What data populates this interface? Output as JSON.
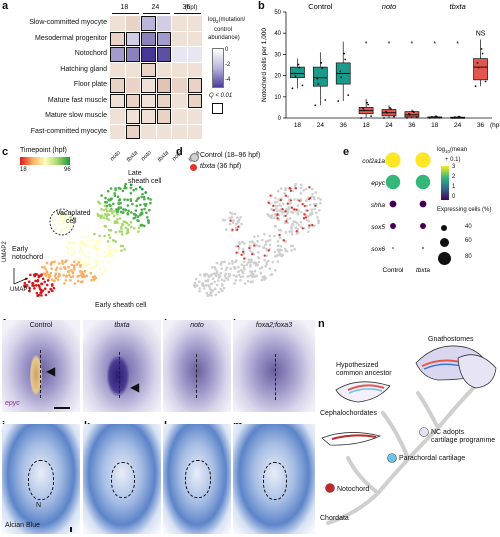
{
  "panels": {
    "a": "a",
    "b": "b",
    "c": "c",
    "d": "d",
    "e": "e",
    "f": "f",
    "g": "g",
    "h": "h",
    "i": "i",
    "j": "j",
    "k": "k",
    "l": "l",
    "m": "m",
    "n": "n"
  },
  "panel_a": {
    "timepoints": [
      "18",
      "24",
      "36"
    ],
    "unit": "(hpf)",
    "rows": [
      "Slow-committed myocyte",
      "Mesodermal progenitor",
      "Notochord",
      "Hatching gland",
      "Floor plate",
      "Mature fast muscle",
      "Mature slow muscle",
      "Fast-committed myocyte"
    ],
    "cols": [
      "noto",
      "tbxta",
      "noto",
      "tbxta",
      "noto",
      "tbxta"
    ],
    "legend_title_1": "log",
    "legend_title_sub": "2",
    "legend_title_2": "(mutation/",
    "legend_title_3": "control",
    "legend_title_4": "abundance)",
    "legend_ticks": [
      "0",
      "-2",
      "-4"
    ],
    "q_label": "Q < 0.01"
  },
  "chart_data": [
    {
      "type": "heatmap",
      "rows": [
        "Slow-committed myocyte",
        "Mesodermal progenitor",
        "Notochord",
        "Hatching gland",
        "Floor plate",
        "Mature fast muscle",
        "Mature slow muscle",
        "Fast-committed myocyte"
      ],
      "columns": [
        "18 noto",
        "18 tbxta",
        "24 noto",
        "24 tbxta",
        "36 noto",
        "36 tbxta"
      ],
      "values": [
        [
          0,
          0.5,
          -1.5,
          -1.0,
          0,
          0
        ],
        [
          0.5,
          -1.0,
          -2.5,
          -2.0,
          0,
          0
        ],
        [
          -2.0,
          -2.5,
          -4.0,
          -3.5,
          -0.5,
          -0.5
        ],
        [
          0,
          0,
          0.5,
          0,
          0,
          0
        ],
        [
          0.5,
          0.5,
          0,
          1.0,
          0.5,
          0.5
        ],
        [
          0,
          0.5,
          0,
          0.5,
          0,
          0.5
        ],
        [
          0,
          0,
          0,
          0.5,
          0,
          0
        ],
        [
          0,
          0.5,
          0,
          0,
          0,
          0
        ]
      ],
      "significant": [
        [
          false,
          false,
          true,
          false,
          false,
          false
        ],
        [
          true,
          true,
          true,
          true,
          false,
          false
        ],
        [
          true,
          true,
          true,
          true,
          false,
          false
        ],
        [
          false,
          false,
          true,
          false,
          false,
          false
        ],
        [
          true,
          false,
          true,
          true,
          false,
          true
        ],
        [
          true,
          true,
          true,
          true,
          false,
          true
        ],
        [
          false,
          true,
          true,
          true,
          false,
          false
        ],
        [
          false,
          true,
          false,
          false,
          false,
          false
        ]
      ],
      "colorbar_ticks": [
        0,
        -2,
        -4
      ]
    },
    {
      "type": "box",
      "ylabel": "Notochord cells per 1,000",
      "ylim": [
        0,
        50
      ],
      "yticks": [
        0,
        10,
        20,
        30,
        40,
        50
      ],
      "xunit": "(hpf)",
      "groups": [
        {
          "name": "Control",
          "color": "#1a9a8a",
          "timepoints": [
            "18",
            "24",
            "36"
          ],
          "boxes": [
            {
              "q1": 19,
              "median": 21,
              "q3": 24,
              "min": 14,
              "max": 28
            },
            {
              "q1": 15,
              "median": 19,
              "q3": 24,
              "min": 6,
              "max": 31
            },
            {
              "q1": 16,
              "median": 21,
              "q3": 26,
              "min": 8,
              "max": 36
            }
          ]
        },
        {
          "name": "noto",
          "color": "#e4574f",
          "timepoints": [
            "18",
            "24",
            "36"
          ],
          "boxes": [
            {
              "q1": 2,
              "median": 3.5,
              "q3": 5,
              "min": 0,
              "max": 9
            },
            {
              "q1": 1,
              "median": 2.5,
              "q3": 4,
              "min": 0,
              "max": 6
            },
            {
              "q1": 0.5,
              "median": 1.5,
              "q3": 3,
              "min": 0,
              "max": 4
            }
          ],
          "significance": [
            "*",
            "*",
            "*"
          ]
        },
        {
          "name": "tbxta",
          "color": "#e4574f",
          "timepoints": [
            "18",
            "24",
            "36"
          ],
          "boxes": [
            {
              "q1": 0,
              "median": 0.3,
              "q3": 0.5,
              "min": 0,
              "max": 1
            },
            {
              "q1": 0,
              "median": 0.2,
              "q3": 0.4,
              "min": 0,
              "max": 0.8
            },
            {
              "q1": 18,
              "median": 24,
              "q3": 28,
              "min": 15,
              "max": 37
            }
          ],
          "significance": [
            "*",
            "*",
            "NS"
          ]
        }
      ]
    },
    {
      "type": "dotplot",
      "genes": [
        "col2a1a",
        "epyc",
        "shha",
        "sox5",
        "sox6"
      ],
      "conditions": [
        "Control",
        "tbxta"
      ],
      "mean_log10": [
        [
          3.0,
          3.0
        ],
        [
          1.5,
          1.5
        ],
        [
          0.3,
          0.3
        ],
        [
          0.2,
          0.2
        ],
        [
          0.1,
          0.1
        ]
      ],
      "pct_expressing": [
        [
          90,
          90
        ],
        [
          85,
          85
        ],
        [
          40,
          40
        ],
        [
          35,
          35
        ],
        [
          5,
          10
        ]
      ],
      "color_title_1": "log",
      "color_title_sub": "10",
      "color_title_2": "(mean",
      "color_title_3": "+ 0.1)",
      "color_ticks": [
        "3",
        "2",
        "1",
        "0"
      ],
      "size_title_1": "Expressing cells (%)",
      "size_ticks": [
        "40",
        "60",
        "80"
      ]
    }
  ],
  "panel_b": {
    "title_control": "Control",
    "title_noto": "noto",
    "title_tbxta": "tbxta",
    "ylabel": "Notochord cells per 1,000",
    "ticks": [
      "50",
      "40",
      "30",
      "20",
      "10",
      "0"
    ],
    "xlabels": [
      "18",
      "24",
      "36",
      "18",
      "24",
      "36",
      "18",
      "24",
      "36"
    ],
    "xunit": "(hpf)",
    "sig": [
      "*",
      "*",
      "*",
      "*",
      "*",
      "NS"
    ]
  },
  "panel_c": {
    "legend_title": "Timepoint (hpf)",
    "legend_lo": "18",
    "legend_hi": "96",
    "label_late": "Late",
    "label_late2": "sheath cell",
    "label_vac": "Vacuolated",
    "label_vac2": "cell",
    "label_early": "Early",
    "label_early2": "notochord",
    "label_es": "Early sheath cell",
    "axis_y": "UMAP2",
    "axis_x": "UMAP1"
  },
  "panel_d": {
    "legend_control": "Control (18–96 hpf)",
    "legend_tbxta_gene": "tbxta",
    "legend_tbxta_rest": " (36 hpf)"
  },
  "panel_e": {
    "genes": [
      "col2a1a",
      "epyc",
      "shha",
      "sox5",
      "sox6"
    ],
    "cols": [
      "Control",
      "tbxta"
    ]
  },
  "panel_fi": {
    "f": "Control",
    "g": "tbxta",
    "h": "noto",
    "i": "foxa2;foxa3",
    "stain": "epyc"
  },
  "panel_jm": {
    "n_mark": "N",
    "stain": "Alcian Blue"
  },
  "panel_n": {
    "gnathostomes": "Gnathostomes",
    "hyp1": "Hypothesized",
    "hyp2": "common ancestor",
    "cephalo": "Cephalochordates",
    "nc1": "NC adopts",
    "nc2": "cartilage programme",
    "parachordal": "Parachordal cartilage",
    "notochord": "Notochord",
    "chordata": "Chordata"
  }
}
